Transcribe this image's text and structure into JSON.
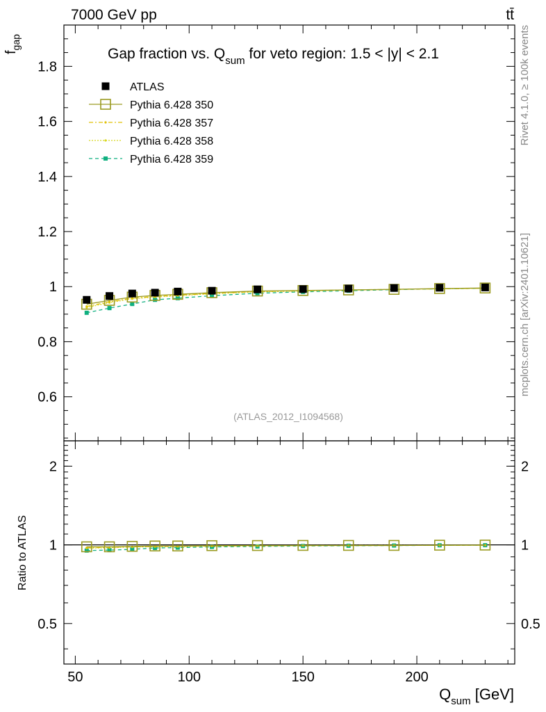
{
  "header": {
    "energy_label": "7000 GeV pp",
    "process_label": "tt̄"
  },
  "side_labels": {
    "rivet": "Rivet 4.1.0, ≥ 100k events",
    "mcplots": "mcplots.cern.ch [arXiv:2401.10621]"
  },
  "watermark": "(ATLAS_2012_I1094568)",
  "chart_data": {
    "type": "scatter",
    "title_main": "Gap fraction vs. Q",
    "title_sub": "sum",
    "title_rest": " for veto region: 1.5 < |y| < 2.1",
    "ylabel_main": "f",
    "ylabel_sub": "gap",
    "xlabel_main": "Q",
    "xlabel_sub": "sum",
    "xlabel_rest": " [GeV]",
    "ratio_ylabel": "Ratio to ATLAS",
    "xlim": [
      45,
      243
    ],
    "ylim": [
      0.44,
      1.95
    ],
    "ratio_ylim": [
      0.35,
      2.5
    ],
    "x_ticks": [
      50,
      100,
      150,
      200
    ],
    "x_tick_labels": [
      "50",
      "100",
      "150",
      "200"
    ],
    "y_ticks": [
      0.6,
      0.8,
      1.0,
      1.2,
      1.4,
      1.6,
      1.8
    ],
    "y_tick_labels": [
      "0.6",
      "0.8",
      "1",
      "1.2",
      "1.4",
      "1.6",
      "1.8"
    ],
    "ratio_ticks": [
      0.5,
      1,
      2
    ],
    "ratio_tick_labels": [
      "0.5",
      "1",
      "2"
    ],
    "x": [
      55,
      65,
      75,
      85,
      95,
      110,
      130,
      150,
      170,
      190,
      210,
      230
    ],
    "series": [
      {
        "name": "ATLAS",
        "color": "#000000",
        "marker": "filled-square",
        "line": "none",
        "values": [
          0.952,
          0.966,
          0.975,
          0.978,
          0.982,
          0.985,
          0.99,
          0.991,
          0.993,
          0.995,
          0.996,
          0.997
        ]
      },
      {
        "name": "Pythia 6.428 350",
        "color": "#9a9a20",
        "marker": "open-square",
        "line": "solid",
        "values": [
          0.936,
          0.95,
          0.962,
          0.968,
          0.972,
          0.978,
          0.984,
          0.986,
          0.988,
          0.99,
          0.993,
          0.995
        ]
      },
      {
        "name": "Pythia 6.428 357",
        "color": "#e0c000",
        "marker": "small-dot",
        "line": "dashdot",
        "values": [
          0.928,
          0.945,
          0.958,
          0.964,
          0.969,
          0.975,
          0.982,
          0.985,
          0.988,
          0.99,
          0.992,
          0.994
        ]
      },
      {
        "name": "Pythia 6.428 358",
        "color": "#d8d820",
        "marker": "small-dot",
        "line": "dotted",
        "values": [
          0.924,
          0.942,
          0.956,
          0.962,
          0.967,
          0.974,
          0.981,
          0.984,
          0.987,
          0.99,
          0.992,
          0.994
        ]
      },
      {
        "name": "Pythia 6.428 359",
        "color": "#10b080",
        "marker": "filled-dot",
        "line": "dashed",
        "values": [
          0.905,
          0.922,
          0.937,
          0.952,
          0.958,
          0.967,
          0.976,
          0.981,
          0.985,
          0.989,
          0.992,
          0.994
        ]
      }
    ],
    "ratio_series": [
      {
        "name": "Pythia 6.428 350",
        "values": [
          0.983,
          0.983,
          0.987,
          0.99,
          0.99,
          0.993,
          0.994,
          0.995,
          0.995,
          0.995,
          0.997,
          0.998
        ]
      },
      {
        "name": "Pythia 6.428 357",
        "values": [
          0.975,
          0.978,
          0.983,
          0.986,
          0.987,
          0.99,
          0.992,
          0.994,
          0.995,
          0.995,
          0.996,
          0.997
        ]
      },
      {
        "name": "Pythia 6.428 358",
        "values": [
          0.971,
          0.975,
          0.981,
          0.984,
          0.985,
          0.989,
          0.991,
          0.993,
          0.994,
          0.995,
          0.996,
          0.997
        ]
      },
      {
        "name": "Pythia 6.428 359",
        "values": [
          0.951,
          0.955,
          0.961,
          0.973,
          0.976,
          0.982,
          0.986,
          0.99,
          0.992,
          0.994,
          0.996,
          0.997
        ]
      }
    ]
  }
}
